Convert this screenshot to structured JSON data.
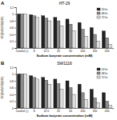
{
  "chart_data": [
    {
      "type": "bar",
      "title": "HT-29",
      "annotations": [
        "A"
      ],
      "x_label": "Sodium butyrate concentration (mM)",
      "y_label": "OD(540)/OD(630)",
      "categories": [
        "Control (-)",
        "6",
        "12.5",
        "25",
        "50",
        "100",
        "150",
        "200"
      ],
      "series": [
        {
          "name": "24 hr",
          "color": "#222222",
          "values": [
            1.0,
            0.98,
            0.95,
            0.9,
            0.85,
            0.75,
            0.6,
            0.5
          ]
        },
        {
          "name": "48 hr",
          "color": "#8c8c8c",
          "values": [
            1.0,
            0.95,
            0.88,
            0.8,
            0.7,
            0.55,
            0.4,
            0.3
          ]
        },
        {
          "name": "72 hr",
          "color": "#e0e0e0",
          "values": [
            1.0,
            0.9,
            0.8,
            0.65,
            0.5,
            0.35,
            0.2,
            0.1
          ]
        }
      ],
      "ylim": [
        0,
        1.2
      ],
      "yticks": [
        0,
        0.2,
        0.4,
        0.6,
        0.8,
        1,
        1.2
      ],
      "legend": "upper right"
    },
    {
      "type": "bar",
      "title": "SW1116",
      "annotations": [
        "B"
      ],
      "x_label": "Sodium butyrate concentration (mM)",
      "y_label": "OD(540)/OD(630)",
      "categories": [
        "Control (-)",
        "6",
        "12.5",
        "25",
        "50",
        "100",
        "150",
        "200"
      ],
      "series": [
        {
          "name": "24 hr",
          "color": "#222222",
          "values": [
            1.0,
            0.95,
            0.9,
            0.85,
            0.8,
            0.7,
            0.55,
            0.45
          ]
        },
        {
          "name": "48 hr",
          "color": "#8c8c8c",
          "values": [
            1.0,
            0.9,
            0.82,
            0.72,
            0.6,
            0.45,
            0.3,
            0.2
          ]
        },
        {
          "name": "72 hr",
          "color": "#e0e0e0",
          "values": [
            1.0,
            0.85,
            0.7,
            0.55,
            0.4,
            0.25,
            0.15,
            0.08
          ]
        }
      ],
      "ylim": [
        0,
        1.2
      ],
      "yticks": [
        0,
        0.2,
        0.4,
        0.6,
        0.8,
        1,
        1.2
      ],
      "legend": "upper right"
    }
  ]
}
